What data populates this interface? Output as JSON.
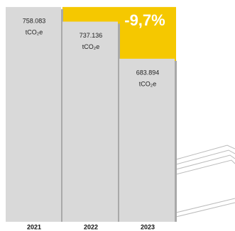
{
  "chart_data": {
    "type": "bar",
    "categories": [
      "2021",
      "2022",
      "2023"
    ],
    "values": [
      758083,
      737136,
      683894
    ],
    "value_labels": [
      "758.083",
      "737.136",
      "683.894"
    ],
    "unit": "tCO₂e",
    "annotation": "-9,7%",
    "color": "#d9d9d9",
    "highlight_color": "#f5c800",
    "ylim": [
      450000,
      760000
    ]
  }
}
